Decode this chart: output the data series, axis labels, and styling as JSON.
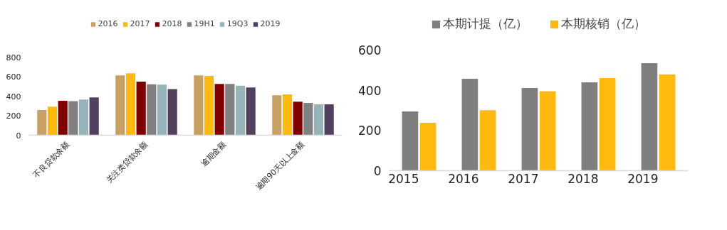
{
  "chart_data": [
    {
      "type": "bar",
      "categories": [
        "不良贷款余额",
        "关注类贷款余额",
        "逾期金额",
        "逾期90天以上金额"
      ],
      "ylim": [
        0,
        800
      ],
      "yticks": [
        0,
        200,
        400,
        600,
        800
      ],
      "legend": "top",
      "series": [
        {
          "name": "2016",
          "color": "#c9a063",
          "values": [
            258,
            613,
            613,
            409
          ]
        },
        {
          "name": "2017",
          "color": "#ffb90f",
          "values": [
            292,
            635,
            608,
            418
          ]
        },
        {
          "name": "2018",
          "color": "#7f0000",
          "values": [
            353,
            550,
            525,
            343
          ]
        },
        {
          "name": "19H1",
          "color": "#808080",
          "values": [
            350,
            521,
            525,
            331
          ]
        },
        {
          "name": "19Q3",
          "color": "#95b3b8",
          "values": [
            365,
            518,
            508,
            316
          ]
        },
        {
          "name": "2019",
          "color": "#51405e",
          "values": [
            387,
            472,
            489,
            316
          ]
        }
      ]
    },
    {
      "type": "bar",
      "categories": [
        "2015",
        "2016",
        "2017",
        "2018",
        "2019"
      ],
      "ylim": [
        0,
        600
      ],
      "yticks": [
        0,
        200,
        400,
        600
      ],
      "legend": "top",
      "series": [
        {
          "name": "本期计提（亿）",
          "color": "#7f7f7f",
          "values": [
            295,
            457,
            411,
            439,
            535
          ]
        },
        {
          "name": "本期核销（亿）",
          "color": "#ffb90f",
          "values": [
            238,
            301,
            395,
            461,
            479
          ]
        }
      ]
    }
  ]
}
